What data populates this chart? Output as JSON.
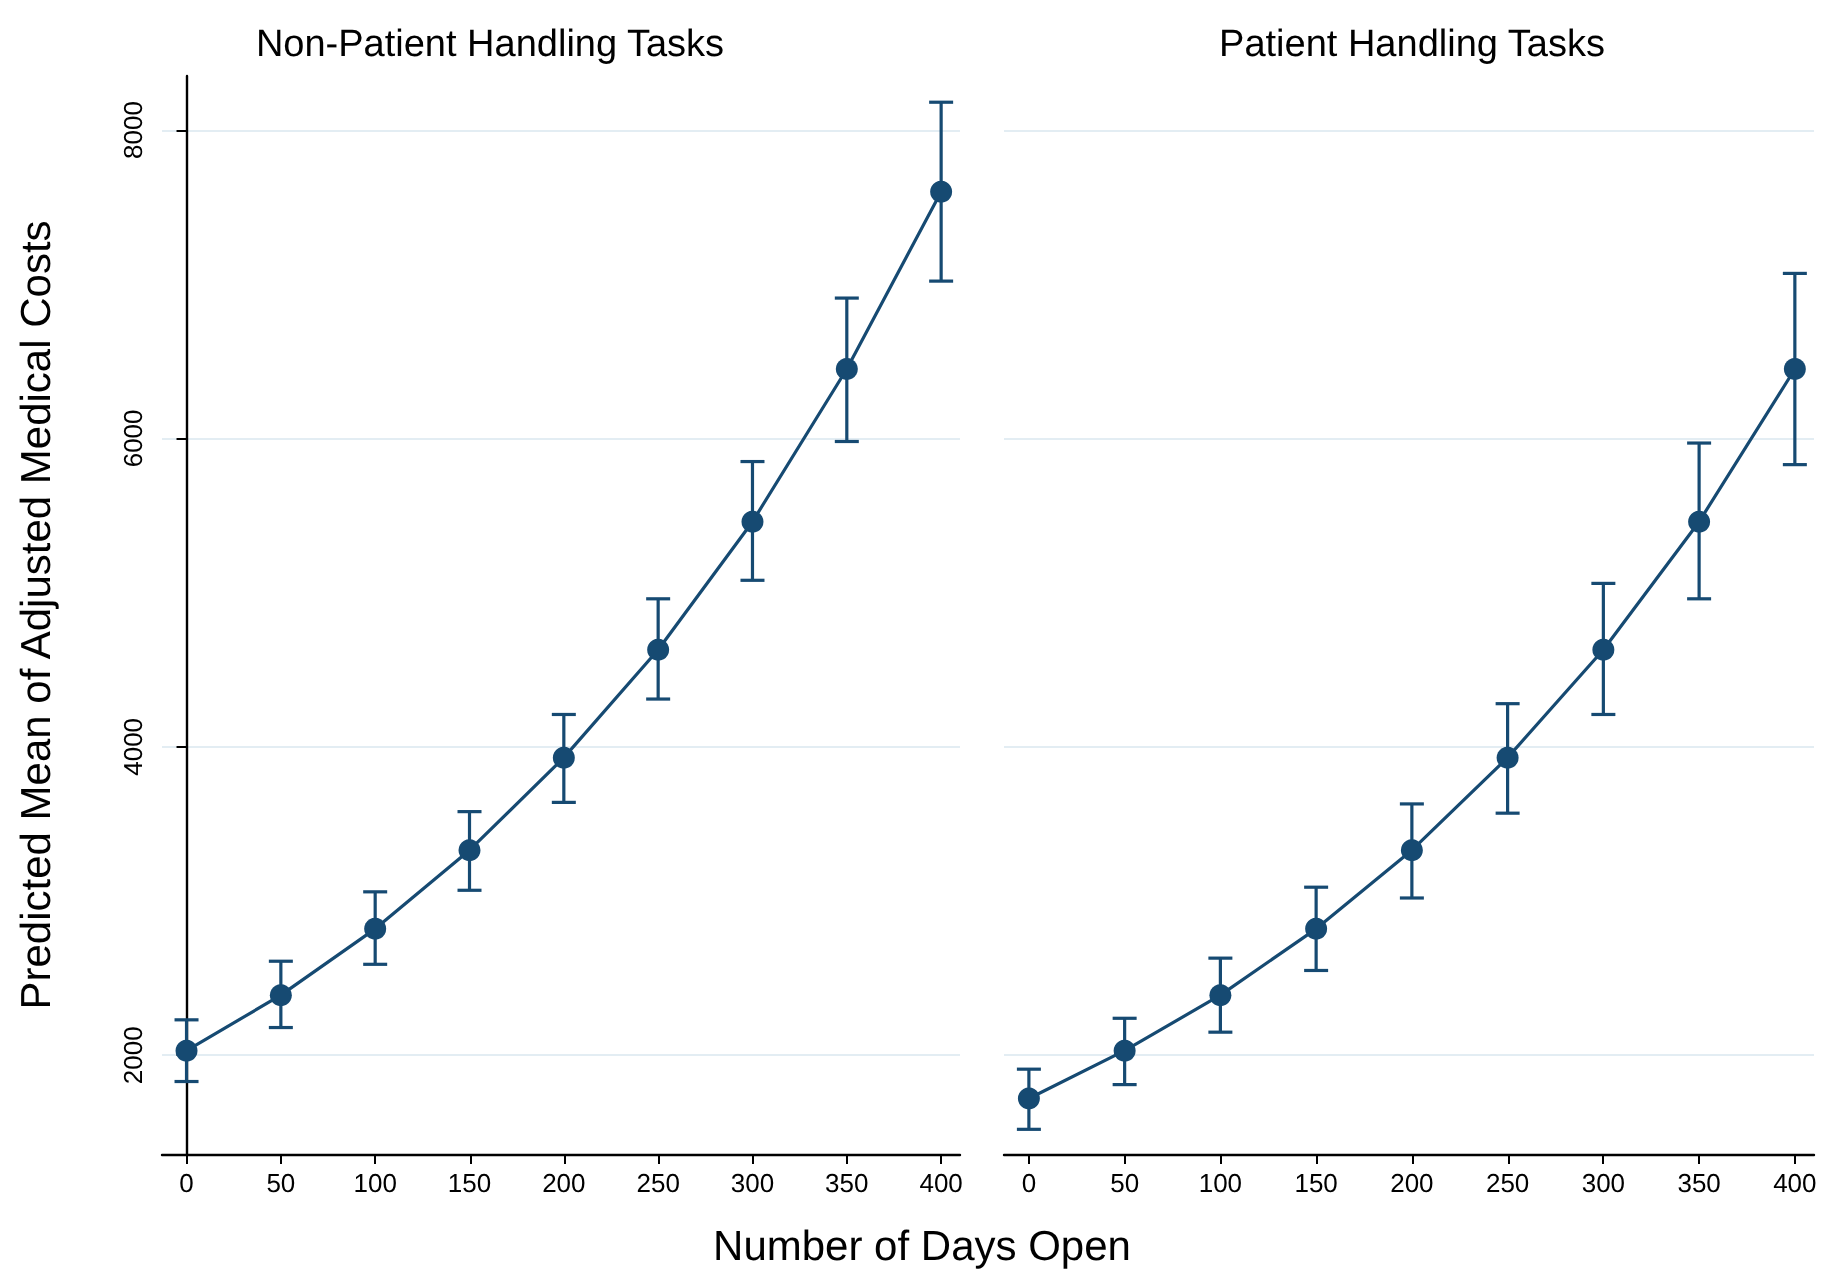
{
  "chart_data": [
    {
      "type": "line",
      "title": "Non-Patient Handling Tasks",
      "xlabel": "Number of Days Open",
      "ylabel": "Predicted Mean of Adjusted Medical Costs",
      "x": [
        0,
        50,
        100,
        150,
        200,
        250,
        300,
        350,
        400
      ],
      "series": [
        {
          "color": "#164a72",
          "values": [
            2030,
            2390,
            2820,
            3330,
            3930,
            4630,
            5460,
            6450,
            7600
          ],
          "errors": [
            [
              1830,
              2230
            ],
            [
              2180,
              2610
            ],
            [
              2590,
              3060
            ],
            [
              3070,
              3580
            ],
            [
              3640,
              4210
            ],
            [
              4310,
              4960
            ],
            [
              5080,
              5850
            ],
            [
              5980,
              6910
            ],
            [
              7020,
              8180
            ]
          ]
        }
      ],
      "xlim": [
        -13,
        410
      ],
      "xticks": [
        0,
        50,
        100,
        150,
        200,
        250,
        300,
        350,
        400
      ],
      "ylim": [
        1360,
        8350
      ],
      "yticks": [
        2000,
        4000,
        6000,
        8000
      ],
      "grid": "y",
      "marker": "circle"
    },
    {
      "type": "line",
      "title": "Patient Handling Tasks",
      "x": [
        0,
        50,
        100,
        150,
        200,
        250,
        300,
        350,
        400
      ],
      "series": [
        {
          "color": "#164a72",
          "values": [
            1720,
            2030,
            2390,
            2820,
            3330,
            3930,
            4630,
            5460,
            6450
          ],
          "errors": [
            [
              1520,
              1910
            ],
            [
              1810,
              2240
            ],
            [
              2150,
              2630
            ],
            [
              2550,
              3090
            ],
            [
              3020,
              3630
            ],
            [
              3570,
              4280
            ],
            [
              4210,
              5060
            ],
            [
              4960,
              5970
            ],
            [
              5830,
              7070
            ]
          ]
        }
      ],
      "xlim": [
        -13,
        410
      ],
      "xticks": [
        0,
        50,
        100,
        150,
        200,
        250,
        300,
        350,
        400
      ],
      "yticks": [
        2000,
        4000,
        6000,
        8000
      ],
      "grid": "y",
      "marker": "circle",
      "tick_labels": "x"
    }
  ]
}
